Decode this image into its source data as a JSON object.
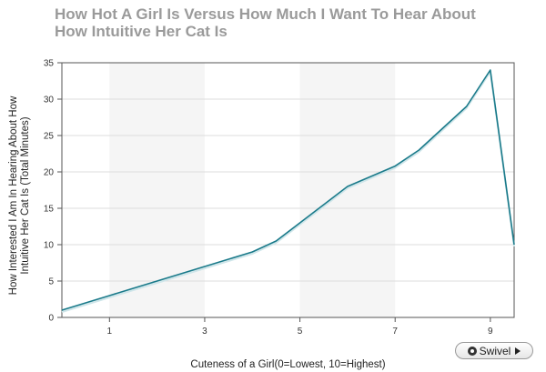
{
  "chart_data": {
    "type": "line",
    "title": "How Hot A Girl Is Versus How Much I Want To Hear About How Intuitive Her Cat Is",
    "xlabel": "Cuteness of a Girl(0=Lowest, 10=Highest)",
    "ylabel": "How Interested I Am In Hearing About How Intuitive Her Cat Is (Total Minutes)",
    "ylabel_lines": [
      "How Interested I Am In Hearing About How",
      "Intuitive Her Cat Is (Total Minutes)"
    ],
    "xlim": [
      0,
      9.5
    ],
    "ylim": [
      0,
      35
    ],
    "x_ticks": [
      1,
      3,
      5,
      7,
      9
    ],
    "y_ticks": [
      0,
      5,
      10,
      15,
      20,
      25,
      30,
      35
    ],
    "bands": [
      [
        1,
        3
      ],
      [
        5,
        7
      ]
    ],
    "series": [
      {
        "color": "#1a7a8a",
        "points": [
          {
            "x": 0,
            "y": 1
          },
          {
            "x": 1,
            "y": 3
          },
          {
            "x": 2,
            "y": 5
          },
          {
            "x": 3,
            "y": 7
          },
          {
            "x": 4,
            "y": 9
          },
          {
            "x": 4.5,
            "y": 10.5
          },
          {
            "x": 5,
            "y": 13
          },
          {
            "x": 6,
            "y": 18
          },
          {
            "x": 7,
            "y": 20.8
          },
          {
            "x": 7.5,
            "y": 23
          },
          {
            "x": 8,
            "y": 26
          },
          {
            "x": 8.5,
            "y": 29
          },
          {
            "x": 9,
            "y": 34
          },
          {
            "x": 9.5,
            "y": 10
          }
        ]
      }
    ],
    "grid": true,
    "grid_color": "#dddddd",
    "band_color": "#f5f5f5"
  },
  "ui": {
    "swivel_label": "Swivel"
  }
}
